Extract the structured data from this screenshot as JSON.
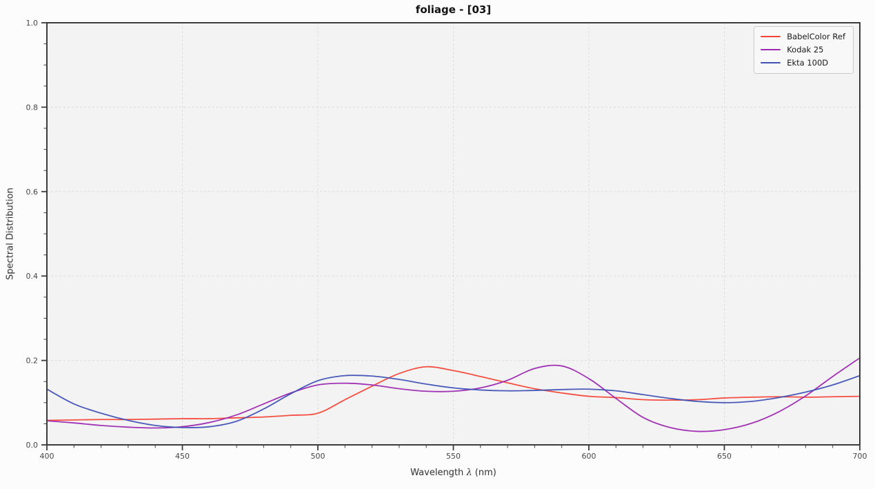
{
  "title": "foliage - [03]",
  "legend": {
    "entries": [
      {
        "label": "BabelColor Ref",
        "color": "#f44336"
      },
      {
        "label": "Kodak 25",
        "color": "#9c27b0"
      },
      {
        "label": "Ekta 100D",
        "color": "#3f51b5"
      }
    ]
  },
  "chart_data": {
    "type": "line",
    "title": "foliage - [03]",
    "xlabel": "Wavelength λ (nm)",
    "ylabel": "Spectral Distribution",
    "xlim": [
      400,
      700
    ],
    "ylim": [
      0.0,
      1.0
    ],
    "x_major_ticks": [
      400,
      450,
      500,
      550,
      600,
      650,
      700
    ],
    "x_minor_step": 10,
    "y_major_ticks": [
      0.0,
      0.2,
      0.4,
      0.6,
      0.8,
      1.0
    ],
    "y_minor_step": 0.05,
    "grid": "major, dashed, light-gray",
    "legend_position": "upper-right",
    "plot_bg_color": "#f3f3f4",
    "spine_color": "#3b3b3b",
    "grid_color": "#dcdcdc",
    "x": [
      400,
      410,
      420,
      430,
      440,
      450,
      460,
      470,
      480,
      490,
      500,
      510,
      520,
      530,
      540,
      550,
      560,
      570,
      580,
      590,
      600,
      610,
      620,
      630,
      640,
      650,
      660,
      670,
      680,
      690,
      700
    ],
    "series": [
      {
        "name": "BabelColor Ref",
        "color": "#f44336",
        "values": [
          0.058,
          0.059,
          0.06,
          0.06,
          0.061,
          0.062,
          0.062,
          0.064,
          0.066,
          0.07,
          0.075,
          0.107,
          0.139,
          0.169,
          0.185,
          0.176,
          0.162,
          0.147,
          0.133,
          0.123,
          0.115,
          0.112,
          0.107,
          0.106,
          0.107,
          0.111,
          0.113,
          0.114,
          0.113,
          0.114,
          0.115
        ]
      },
      {
        "name": "Kodak 25",
        "color": "#9c27b0",
        "values": [
          0.057,
          0.052,
          0.046,
          0.042,
          0.04,
          0.043,
          0.053,
          0.071,
          0.097,
          0.123,
          0.142,
          0.146,
          0.142,
          0.133,
          0.127,
          0.127,
          0.135,
          0.153,
          0.181,
          0.187,
          0.157,
          0.11,
          0.065,
          0.041,
          0.032,
          0.036,
          0.051,
          0.078,
          0.116,
          0.162,
          0.206
        ]
      },
      {
        "name": "Ekta 100D",
        "color": "#3f51b5",
        "values": [
          0.132,
          0.097,
          0.075,
          0.058,
          0.046,
          0.041,
          0.043,
          0.056,
          0.085,
          0.121,
          0.152,
          0.164,
          0.163,
          0.155,
          0.144,
          0.135,
          0.13,
          0.128,
          0.129,
          0.131,
          0.132,
          0.128,
          0.119,
          0.11,
          0.103,
          0.1,
          0.103,
          0.112,
          0.125,
          0.142,
          0.164
        ]
      }
    ]
  }
}
